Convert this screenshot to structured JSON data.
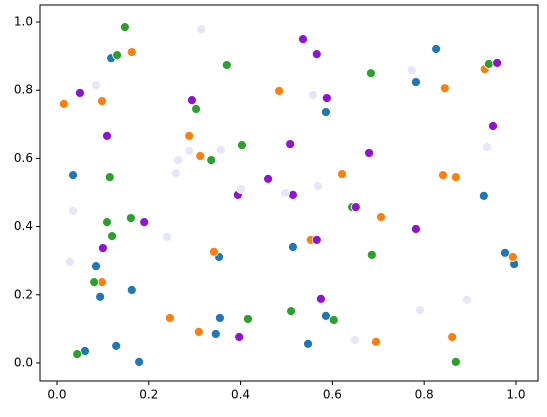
{
  "chart_data": {
    "type": "scatter",
    "xlim": [
      -0.037,
      1.048
    ],
    "ylim": [
      -0.053,
      1.05
    ],
    "xticks": [
      {
        "value": 0,
        "label": "0.0"
      },
      {
        "value": 0.2,
        "label": "0.2"
      },
      {
        "value": 0.4,
        "label": "0.4"
      },
      {
        "value": 0.6,
        "label": "0.6"
      },
      {
        "value": 0.8,
        "label": "0.8"
      },
      {
        "value": 1,
        "label": "1.0"
      }
    ],
    "yticks": [
      {
        "value": 0,
        "label": "0.0"
      },
      {
        "value": 0.2,
        "label": "0.2"
      },
      {
        "value": 0.4,
        "label": "0.4"
      },
      {
        "value": 0.6,
        "label": "0.6"
      },
      {
        "value": 0.8,
        "label": "0.8"
      },
      {
        "value": 1,
        "label": "1.0"
      }
    ],
    "series": [
      {
        "color": "#1f77b4",
        "x": [
          0.118,
          0.035,
          0.085,
          0.094,
          0.163,
          0.061,
          0.129,
          0.179,
          0.353,
          0.355,
          0.346,
          0.514,
          0.547,
          0.586,
          0.586,
          0.826,
          0.782,
          0.93,
          0.976,
          0.996
        ],
        "values": [
          0.894,
          0.551,
          0.284,
          0.194,
          0.214,
          0.035,
          0.05,
          0.003,
          0.311,
          0.132,
          0.085,
          0.34,
          0.056,
          0.138,
          0.736,
          0.921,
          0.824,
          0.49,
          0.323,
          0.29
        ]
      },
      {
        "color": "#ff7f0e",
        "x": [
          0.015,
          0.098,
          0.163,
          0.098,
          0.288,
          0.312,
          0.246,
          0.309,
          0.342,
          0.484,
          0.553,
          0.621,
          0.706,
          0.695,
          0.841,
          0.869,
          0.845,
          0.932,
          0.993,
          0.861
        ],
        "values": [
          0.76,
          0.768,
          0.912,
          0.237,
          0.666,
          0.607,
          0.132,
          0.091,
          0.326,
          0.798,
          0.361,
          0.554,
          0.428,
          0.062,
          0.551,
          0.545,
          0.806,
          0.862,
          0.311,
          0.076
        ]
      },
      {
        "color": "#2ca02c",
        "x": [
          0.148,
          0.131,
          0.37,
          0.303,
          0.115,
          0.403,
          0.336,
          0.109,
          0.161,
          0.12,
          0.081,
          0.044,
          0.416,
          0.51,
          0.603,
          0.643,
          0.686,
          0.684,
          0.941,
          0.869
        ],
        "values": [
          0.985,
          0.903,
          0.874,
          0.745,
          0.545,
          0.639,
          0.595,
          0.413,
          0.425,
          0.372,
          0.237,
          0.026,
          0.129,
          0.152,
          0.126,
          0.457,
          0.317,
          0.85,
          0.877,
          0.003
        ]
      },
      {
        "color": "#9013d4",
        "x": [
          0.05,
          0.109,
          0.294,
          0.1,
          0.19,
          0.394,
          0.397,
          0.46,
          0.508,
          0.514,
          0.536,
          0.566,
          0.588,
          0.566,
          0.575,
          0.651,
          0.68,
          0.782,
          0.95,
          0.959
        ],
        "values": [
          0.792,
          0.666,
          0.771,
          0.337,
          0.413,
          0.493,
          0.076,
          0.54,
          0.642,
          0.493,
          0.95,
          0.906,
          0.777,
          0.361,
          0.188,
          0.457,
          0.616,
          0.393,
          0.695,
          0.88
        ]
      },
      {
        "color": "#e6e6fa",
        "x": [
          0.314,
          0.085,
          0.035,
          0.028,
          0.264,
          0.259,
          0.288,
          0.357,
          0.401,
          0.24,
          0.497,
          0.558,
          0.569,
          0.649,
          0.773,
          0.791,
          0.893,
          0.937
        ],
        "values": [
          0.979,
          0.815,
          0.446,
          0.296,
          0.595,
          0.557,
          0.622,
          0.625,
          0.51,
          0.37,
          0.499,
          0.786,
          0.519,
          0.067,
          0.859,
          0.155,
          0.185,
          0.633
        ]
      }
    ]
  }
}
